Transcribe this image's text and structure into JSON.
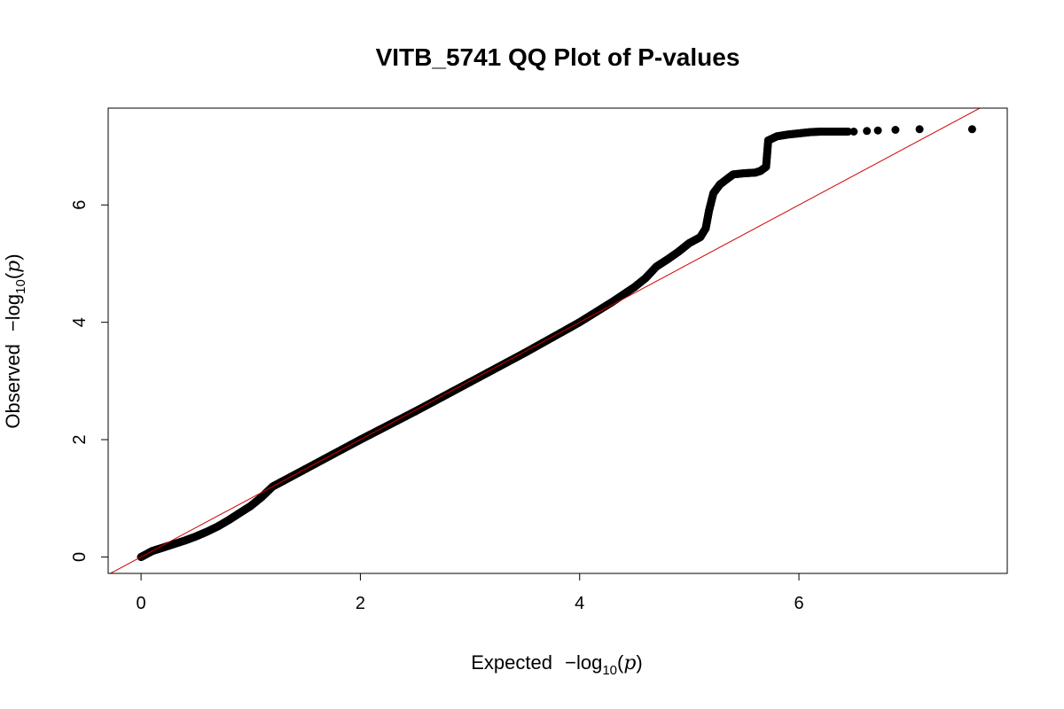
{
  "chart_data": {
    "type": "scatter",
    "title": "VITB_5741 QQ Plot of P-values",
    "xlabel": {
      "prefix": "Expected",
      "expr": "−log",
      "sub": "10",
      "arg": "p"
    },
    "ylabel": {
      "prefix": "Observed",
      "expr": "−log",
      "sub": "10",
      "arg": "p"
    },
    "xlim": [
      -0.3,
      7.9
    ],
    "ylim": [
      -0.28,
      7.65
    ],
    "x_ticks": [
      0,
      2,
      4,
      6
    ],
    "x_tick_labels": [
      "0",
      "2",
      "4",
      "6"
    ],
    "y_ticks": [
      0,
      2,
      4,
      6
    ],
    "y_tick_labels": [
      "0",
      "2",
      "4",
      "6"
    ],
    "grid": false,
    "reference_line": {
      "type": "y=x",
      "color": "#cc0000"
    },
    "point_color": "#000000",
    "points_curve": [
      [
        0.0,
        0.0
      ],
      [
        0.05,
        0.05
      ],
      [
        0.1,
        0.1
      ],
      [
        0.2,
        0.16
      ],
      [
        0.3,
        0.22
      ],
      [
        0.4,
        0.28
      ],
      [
        0.5,
        0.35
      ],
      [
        0.6,
        0.43
      ],
      [
        0.7,
        0.52
      ],
      [
        0.8,
        0.63
      ],
      [
        0.9,
        0.75
      ],
      [
        1.0,
        0.87
      ],
      [
        1.1,
        1.02
      ],
      [
        1.2,
        1.2
      ],
      [
        1.3,
        1.3
      ],
      [
        1.5,
        1.5
      ],
      [
        2.0,
        2.0
      ],
      [
        2.5,
        2.48
      ],
      [
        3.0,
        2.98
      ],
      [
        3.5,
        3.48
      ],
      [
        4.0,
        4.0
      ],
      [
        4.3,
        4.35
      ],
      [
        4.5,
        4.6
      ],
      [
        4.6,
        4.75
      ],
      [
        4.7,
        4.95
      ],
      [
        4.8,
        5.07
      ],
      [
        4.9,
        5.2
      ],
      [
        5.0,
        5.35
      ],
      [
        5.1,
        5.45
      ],
      [
        5.15,
        5.6
      ],
      [
        5.18,
        5.9
      ],
      [
        5.22,
        6.2
      ],
      [
        5.28,
        6.35
      ],
      [
        5.35,
        6.45
      ],
      [
        5.4,
        6.52
      ],
      [
        5.5,
        6.54
      ],
      [
        5.6,
        6.55
      ],
      [
        5.65,
        6.58
      ],
      [
        5.7,
        6.65
      ],
      [
        5.72,
        7.1
      ],
      [
        5.8,
        7.17
      ],
      [
        5.9,
        7.2
      ],
      [
        6.0,
        7.22
      ],
      [
        6.1,
        7.24
      ],
      [
        6.2,
        7.25
      ],
      [
        6.35,
        7.25
      ],
      [
        6.45,
        7.25
      ]
    ],
    "points_tail": [
      [
        6.5,
        7.25
      ],
      [
        6.62,
        7.26
      ],
      [
        6.72,
        7.27
      ],
      [
        6.88,
        7.28
      ],
      [
        7.1,
        7.29
      ],
      [
        7.58,
        7.29
      ]
    ]
  }
}
